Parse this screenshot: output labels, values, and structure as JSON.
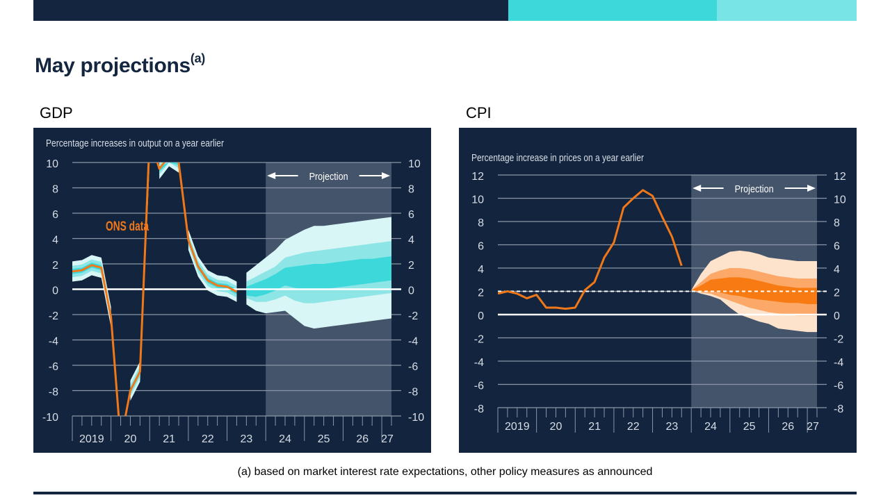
{
  "header": {
    "title": "May projections",
    "title_superscript": "(a)",
    "colors": {
      "dark": "#14263f",
      "teal": "#3dd8da",
      "light_teal": "#79e4e5"
    }
  },
  "footnote": "(a) based on market interest rate expectations, other policy measures as announced",
  "chart_data": [
    {
      "id": "gdp",
      "type": "area",
      "heading": "GDP",
      "title": "Percentage increases in output on a year earlier",
      "ylim": [
        -10,
        10
      ],
      "yticks": [
        10,
        8,
        6,
        4,
        2,
        0,
        -2,
        -4,
        -6,
        -8,
        -10
      ],
      "ytick_labels": [
        "10",
        "8",
        "6",
        "4",
        "2",
        "0",
        "-2",
        "-4",
        "-6",
        "-8",
        "-10"
      ],
      "x_labels": [
        "2019",
        "20",
        "21",
        "22",
        "23",
        "24",
        "25",
        "26",
        "27"
      ],
      "x_range": [
        2019.0,
        2027.25
      ],
      "projection_start": 2024.0,
      "projection_label": "Projection",
      "annotation": "ONS data",
      "grid": true,
      "zero_line": true,
      "colors": {
        "line": "#f07818",
        "band_outer": "#d8f6f6",
        "band_mid": "#8de5e5",
        "band_inner": "#3dd8da",
        "projection_bg": "#44546a"
      },
      "ons_data": {
        "x": [
          2019.0,
          2019.25,
          2019.5,
          2019.75,
          2020.0,
          2020.25,
          2020.5,
          2020.75,
          2021.0,
          2021.25,
          2021.5,
          2021.75,
          2022.0,
          2022.25,
          2022.5,
          2022.75,
          2023.0,
          2023.25
        ],
        "y": [
          1.4,
          1.5,
          1.9,
          1.7,
          -2.2,
          -21.0,
          -8.0,
          -6.5,
          24.0,
          9.5,
          10.5,
          10.0,
          3.9,
          1.8,
          0.7,
          0.3,
          0.2,
          -0.2
        ]
      },
      "fan": {
        "x": [
          2023.5,
          2023.75,
          2024.0,
          2024.25,
          2024.5,
          2024.75,
          2025.0,
          2025.25,
          2025.5,
          2025.75,
          2026.0,
          2026.25,
          2026.5,
          2026.75,
          2027.0,
          2027.25
        ],
        "outer_upper": [
          1.3,
          1.9,
          2.5,
          3.1,
          3.9,
          4.3,
          4.7,
          5.0,
          5.0,
          5.1,
          5.2,
          5.3,
          5.4,
          5.5,
          5.6,
          5.7
        ],
        "mid_upper": [
          0.6,
          1.0,
          1.4,
          1.8,
          2.5,
          2.7,
          2.9,
          3.0,
          3.1,
          3.2,
          3.3,
          3.4,
          3.5,
          3.6,
          3.7,
          3.8
        ],
        "inner_upper": [
          0.2,
          0.5,
          0.8,
          1.2,
          1.7,
          1.8,
          1.9,
          2.0,
          2.0,
          2.1,
          2.2,
          2.3,
          2.4,
          2.4,
          2.5,
          2.6
        ],
        "inner_lower": [
          -0.5,
          -0.6,
          -0.4,
          -0.1,
          0.3,
          0.1,
          0.0,
          0.0,
          0.0,
          0.1,
          0.2,
          0.3,
          0.4,
          0.5,
          0.6,
          0.7
        ],
        "mid_lower": [
          -0.7,
          -1.0,
          -1.0,
          -0.8,
          -0.5,
          -0.9,
          -1.1,
          -1.1,
          -1.0,
          -0.9,
          -0.8,
          -0.7,
          -0.6,
          -0.5,
          -0.4,
          -0.3
        ],
        "outer_lower": [
          -1.2,
          -1.7,
          -1.9,
          -1.8,
          -1.7,
          -2.3,
          -2.9,
          -3.1,
          -3.0,
          -2.9,
          -2.8,
          -2.7,
          -2.6,
          -2.5,
          -2.4,
          -2.3
        ]
      }
    },
    {
      "id": "cpi",
      "type": "area",
      "heading": "CPI",
      "title": "Percentage increase in prices on a year earlier",
      "ylim": [
        -8,
        12
      ],
      "yticks": [
        12,
        10,
        8,
        6,
        4,
        2,
        0,
        -2,
        -4,
        -6,
        -8
      ],
      "ytick_labels": [
        "12",
        "10",
        "8",
        "6",
        "4",
        "2",
        "0",
        "-2",
        "-4",
        "-6",
        "-8"
      ],
      "x_labels": [
        "2019",
        "20",
        "21",
        "22",
        "23",
        "24",
        "25",
        "26",
        "27"
      ],
      "x_range": [
        2019.0,
        2027.25
      ],
      "projection_start": 2024.0,
      "projection_label": "Projection",
      "target": 2.0,
      "grid": true,
      "zero_line": true,
      "colors": {
        "line": "#f07818",
        "band_outer": "#fde3cc",
        "band_mid": "#fba868",
        "band_inner": "#f77b12",
        "projection_bg": "#44546a"
      },
      "ons_data": {
        "x": [
          2019.0,
          2019.25,
          2019.5,
          2019.75,
          2020.0,
          2020.25,
          2020.5,
          2020.75,
          2021.0,
          2021.25,
          2021.5,
          2021.75,
          2022.0,
          2022.25,
          2022.5,
          2022.75,
          2023.0,
          2023.25,
          2023.5,
          2023.75
        ],
        "y": [
          1.8,
          2.0,
          1.8,
          1.4,
          1.7,
          0.6,
          0.6,
          0.5,
          0.6,
          2.1,
          2.8,
          4.9,
          6.2,
          9.2,
          10.0,
          10.7,
          10.2,
          8.4,
          6.7,
          4.2
        ]
      },
      "fan": {
        "x": [
          2023.75,
          2024.0,
          2024.25,
          2024.5,
          2024.75,
          2025.0,
          2025.25,
          2025.5,
          2025.75,
          2026.0,
          2026.25,
          2026.5,
          2026.75,
          2027.0,
          2027.25
        ],
        "outer_upper": [
          3.6,
          2.1,
          3.5,
          4.6,
          5.0,
          5.4,
          5.5,
          5.4,
          5.2,
          4.9,
          4.8,
          4.7,
          4.6,
          4.6,
          4.6
        ],
        "mid_upper": [
          3.6,
          2.1,
          2.8,
          3.5,
          3.8,
          4.0,
          4.0,
          3.9,
          3.7,
          3.5,
          3.3,
          3.2,
          3.1,
          3.1,
          3.1
        ],
        "inner_upper": [
          3.6,
          2.1,
          2.5,
          3.0,
          3.1,
          3.2,
          3.2,
          3.1,
          2.9,
          2.7,
          2.5,
          2.4,
          2.3,
          2.3,
          2.3
        ],
        "inner_lower": [
          3.6,
          2.1,
          2.0,
          2.0,
          1.9,
          1.7,
          1.6,
          1.4,
          1.3,
          1.2,
          1.1,
          1.0,
          1.0,
          0.9,
          0.9
        ],
        "mid_lower": [
          3.6,
          2.1,
          1.9,
          1.8,
          1.5,
          1.2,
          0.9,
          0.6,
          0.4,
          0.2,
          0.1,
          0.0,
          -0.1,
          -0.1,
          -0.1
        ],
        "outer_lower": [
          3.6,
          2.1,
          1.8,
          1.6,
          1.3,
          0.6,
          0.0,
          -0.3,
          -0.6,
          -0.8,
          -1.2,
          -1.3,
          -1.4,
          -1.5,
          -1.5
        ]
      }
    }
  ]
}
